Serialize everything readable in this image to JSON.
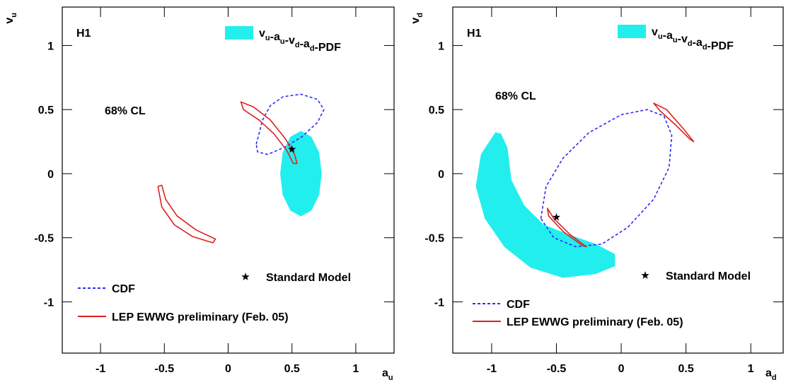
{
  "chart_data": [
    {
      "type": "contour",
      "annotation": "H1",
      "note": "68% CL",
      "x_label": "au",
      "y_label": "vu",
      "xlim": [
        -1.3,
        1.3
      ],
      "ylim": [
        -1.4,
        1.3
      ],
      "xticks": [
        -1,
        -0.5,
        0,
        0.5,
        1
      ],
      "yticks": [
        -1,
        -0.5,
        0,
        0.5,
        1
      ],
      "series": [
        {
          "name": "vu-au-vd-ad-PDF",
          "color": "#22eeee",
          "fill": true,
          "x": [
            0.73,
            0.71,
            0.65,
            0.57,
            0.49,
            0.43,
            0.41,
            0.43,
            0.49,
            0.57,
            0.65,
            0.71
          ],
          "y": [
            0,
            0.165,
            0.286,
            0.33,
            0.286,
            0.165,
            0,
            -0.165,
            -0.286,
            -0.33,
            -0.286,
            -0.165
          ]
        },
        {
          "name": "CDF",
          "color": "#2b2bff",
          "dash": true,
          "x": [
            0.22,
            0.27,
            0.33,
            0.43,
            0.57,
            0.7,
            0.75,
            0.7,
            0.58,
            0.45,
            0.31,
            0.23
          ],
          "y": [
            0.23,
            0.42,
            0.53,
            0.6,
            0.62,
            0.58,
            0.5,
            0.4,
            0.29,
            0.21,
            0.15,
            0.17
          ]
        },
        {
          "name": "LEP EWWG preliminary (Feb. 05)",
          "color": "#e02020",
          "x": [
            0.1,
            0.2,
            0.33,
            0.45,
            0.52,
            0.54,
            0.51,
            0.46,
            0.36,
            0.24,
            0.12,
            null,
            -0.55,
            -0.52,
            -0.42,
            -0.28,
            -0.12,
            -0.1,
            -0.25,
            -0.4,
            -0.49,
            -0.52
          ],
          "y": [
            0.56,
            0.52,
            0.42,
            0.27,
            0.15,
            0.08,
            0.08,
            0.18,
            0.31,
            0.42,
            0.5,
            null,
            -0.1,
            -0.26,
            -0.4,
            -0.49,
            -0.54,
            -0.51,
            -0.44,
            -0.33,
            -0.2,
            -0.09
          ]
        },
        {
          "name": "Standard Model",
          "color": "#000000",
          "marker": "star",
          "x": [
            0.5
          ],
          "y": [
            0.19
          ]
        }
      ]
    },
    {
      "type": "contour",
      "annotation": "H1",
      "note": "68% CL",
      "x_label": "ad",
      "y_label": "vd",
      "xlim": [
        -1.3,
        1.25
      ],
      "ylim": [
        -1.4,
        1.3
      ],
      "xticks": [
        -1,
        -0.5,
        0,
        0.5,
        1
      ],
      "yticks": [
        -1,
        -0.5,
        0,
        0.5,
        1
      ],
      "series": [
        {
          "name": "vu-au-vd-ad-PDF",
          "color": "#22eeee",
          "fill": true,
          "x": [
            -0.97,
            -1.08,
            -1.12,
            -1.05,
            -0.9,
            -0.7,
            -0.45,
            -0.2,
            -0.05,
            -0.05,
            -0.2,
            -0.4,
            -0.6,
            -0.75,
            -0.85,
            -0.88,
            -0.93
          ],
          "y": [
            0.32,
            0.15,
            -0.1,
            -0.35,
            -0.57,
            -0.73,
            -0.81,
            -0.78,
            -0.72,
            -0.63,
            -0.55,
            -0.48,
            -0.4,
            -0.25,
            -0.05,
            0.2,
            0.31
          ]
        },
        {
          "name": "CDF",
          "color": "#2b2bff",
          "dash": true,
          "x": [
            -0.62,
            -0.58,
            -0.45,
            -0.25,
            0,
            0.2,
            0.33,
            0.39,
            0.37,
            0.25,
            0.05,
            -0.15,
            -0.35,
            -0.52
          ],
          "y": [
            -0.35,
            -0.1,
            0.12,
            0.32,
            0.46,
            0.5,
            0.45,
            0.3,
            0.05,
            -0.2,
            -0.42,
            -0.55,
            -0.57,
            -0.5
          ]
        },
        {
          "name": "LEP EWWG preliminary (Feb. 05)",
          "color": "#e02020",
          "x": [
            -0.57,
            -0.52,
            -0.4,
            -0.27,
            -0.3,
            -0.45,
            -0.56,
            null,
            0.25,
            0.35,
            0.48,
            0.56,
            0.53,
            0.42,
            0.3
          ],
          "y": [
            -0.27,
            -0.35,
            -0.47,
            -0.57,
            -0.56,
            -0.45,
            -0.33,
            null,
            0.55,
            0.5,
            0.35,
            0.25,
            0.27,
            0.38,
            0.49
          ]
        },
        {
          "name": "Standard Model",
          "color": "#000000",
          "marker": "star",
          "x": [
            -0.5
          ],
          "y": [
            -0.34
          ]
        }
      ]
    }
  ]
}
